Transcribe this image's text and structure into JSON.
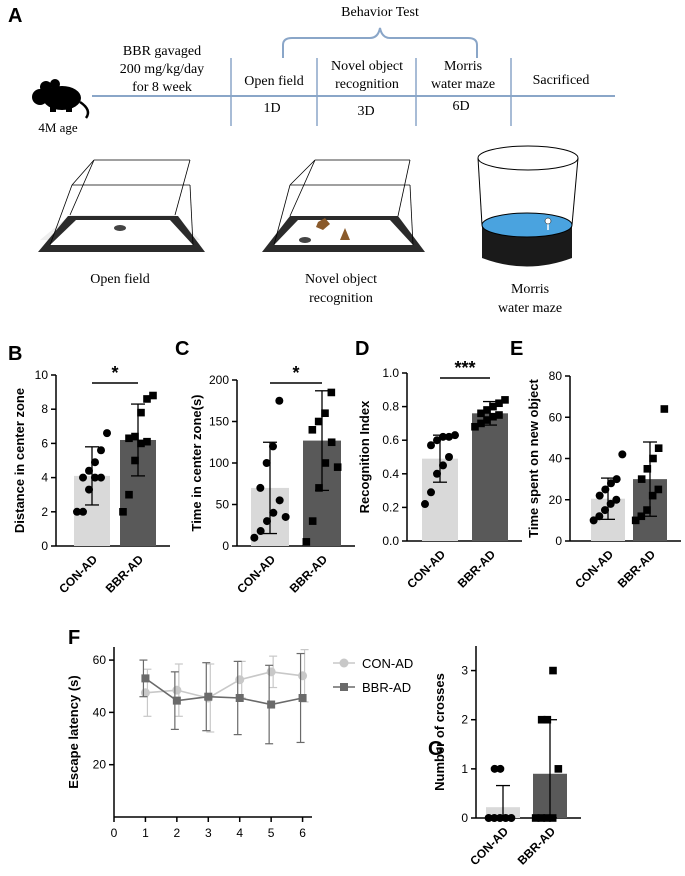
{
  "figure": {
    "panel_a_label": "A",
    "behavior_test_label": "Behavior Test",
    "mouse_age": "4M age",
    "timeline": {
      "bbr_line1": "BBR gavaged",
      "bbr_line2": "200 mg/kg/day",
      "bbr_line3": "for 8 week",
      "open_field": "Open field",
      "open_field_day": "1D",
      "nor_line1": "Novel object",
      "nor_line2": "recognition",
      "nor_day": "3D",
      "mwm_line1": "Morris",
      "mwm_line2": "water maze",
      "mwm_day": "6D",
      "sacrificed": "Sacrificed"
    },
    "apparatus": {
      "open_field": "Open field",
      "nor_line1": "Novel object",
      "nor_line2": "recognition",
      "mwm_line1": "Morris",
      "mwm_line2": "water maze"
    }
  },
  "colors": {
    "con": "#d9d9d9",
    "bbr": "#595959",
    "con_line": "#c8c8c8",
    "bbr_line": "#6a6a6a",
    "water": "#4aa3df",
    "ink": "#000000"
  },
  "chart_data": [
    {
      "panel": "B",
      "type": "bar",
      "categories": [
        "CON-AD",
        "BBR-AD"
      ],
      "values": [
        4.1,
        6.2
      ],
      "sd": [
        1.7,
        2.1
      ],
      "points": [
        [
          2.0,
          2.0,
          3.3,
          4.0,
          4.0,
          4.0,
          4.4,
          4.9,
          5.6,
          6.6
        ],
        [
          2.0,
          3.0,
          5.0,
          6.0,
          6.1,
          6.3,
          6.4,
          7.8,
          8.6,
          8.8
        ]
      ],
      "ylabel": "Distance in center zone",
      "ylim": [
        0,
        10
      ],
      "yticks": [
        0,
        2,
        4,
        6,
        8,
        10
      ],
      "significance": "*"
    },
    {
      "panel": "C",
      "type": "bar",
      "categories": [
        "CON-AD",
        "BBR-AD"
      ],
      "values": [
        70,
        127
      ],
      "sd": [
        55,
        60
      ],
      "points": [
        [
          10,
          18,
          30,
          40,
          55,
          70,
          100,
          120,
          175,
          35
        ],
        [
          5,
          30,
          70,
          100,
          125,
          140,
          150,
          160,
          185,
          95
        ]
      ],
      "ylabel": "Time in center zone(s)",
      "ylim": [
        0,
        200
      ],
      "yticks": [
        0,
        50,
        100,
        150,
        200
      ],
      "significance": "*"
    },
    {
      "panel": "D",
      "type": "bar",
      "categories": [
        "CON-AD",
        "BBR-AD"
      ],
      "values": [
        0.49,
        0.76
      ],
      "sd": [
        0.14,
        0.07
      ],
      "points": [
        [
          0.22,
          0.29,
          0.4,
          0.45,
          0.5,
          0.57,
          0.6,
          0.62,
          0.62,
          0.63
        ],
        [
          0.68,
          0.7,
          0.72,
          0.74,
          0.75,
          0.76,
          0.78,
          0.8,
          0.82,
          0.84
        ]
      ],
      "ylabel": "Recognition Index",
      "ylim": [
        0,
        1.0
      ],
      "yticks": [
        0.0,
        0.2,
        0.4,
        0.6,
        0.8,
        1.0
      ],
      "significance": "***"
    },
    {
      "panel": "E",
      "type": "bar",
      "categories": [
        "CON-AD",
        "BBR-AD"
      ],
      "values": [
        20.5,
        30
      ],
      "sd": [
        10,
        18
      ],
      "points": [
        [
          10,
          12,
          15,
          18,
          20,
          22,
          25,
          28,
          30,
          42
        ],
        [
          10,
          12,
          15,
          22,
          25,
          30,
          35,
          40,
          45,
          64
        ]
      ],
      "ylabel": "Time spent on new object",
      "ylim": [
        0,
        80
      ],
      "yticks": [
        0,
        20,
        40,
        60,
        80
      ],
      "significance": ""
    },
    {
      "panel": "F",
      "type": "line",
      "x": [
        1,
        2,
        3,
        4,
        5,
        6
      ],
      "series": [
        {
          "name": "CON-AD",
          "values": [
            47.5,
            48.5,
            45.5,
            52.5,
            55.5,
            54
          ],
          "sd": [
            9,
            10,
            13,
            7,
            6,
            10
          ]
        },
        {
          "name": "BBR-AD",
          "values": [
            53,
            44.5,
            46,
            45.5,
            43,
            45.5
          ],
          "sd": [
            7,
            11,
            13,
            14,
            15,
            17
          ]
        }
      ],
      "xlabel": "",
      "ylabel": "Escape latency (s)",
      "xlim": [
        0,
        6.3
      ],
      "ylim": [
        0,
        65
      ],
      "xticks": [
        0,
        1,
        2,
        3,
        4,
        5,
        6
      ],
      "yticks": [
        20,
        40,
        60
      ]
    },
    {
      "panel": "G",
      "type": "bar",
      "categories": [
        "CON-AD",
        "BBR-AD"
      ],
      "values": [
        0.22,
        0.9
      ],
      "sd": [
        0.44,
        1.1
      ],
      "points": [
        [
          0,
          0,
          0,
          0,
          0,
          1,
          1
        ],
        [
          0,
          0,
          0,
          0,
          1,
          2,
          2,
          3
        ]
      ],
      "ylabel": "Number of crosses",
      "ylim": [
        0,
        3.5
      ],
      "yticks": [
        0,
        1,
        2,
        3
      ],
      "significance": ""
    }
  ]
}
